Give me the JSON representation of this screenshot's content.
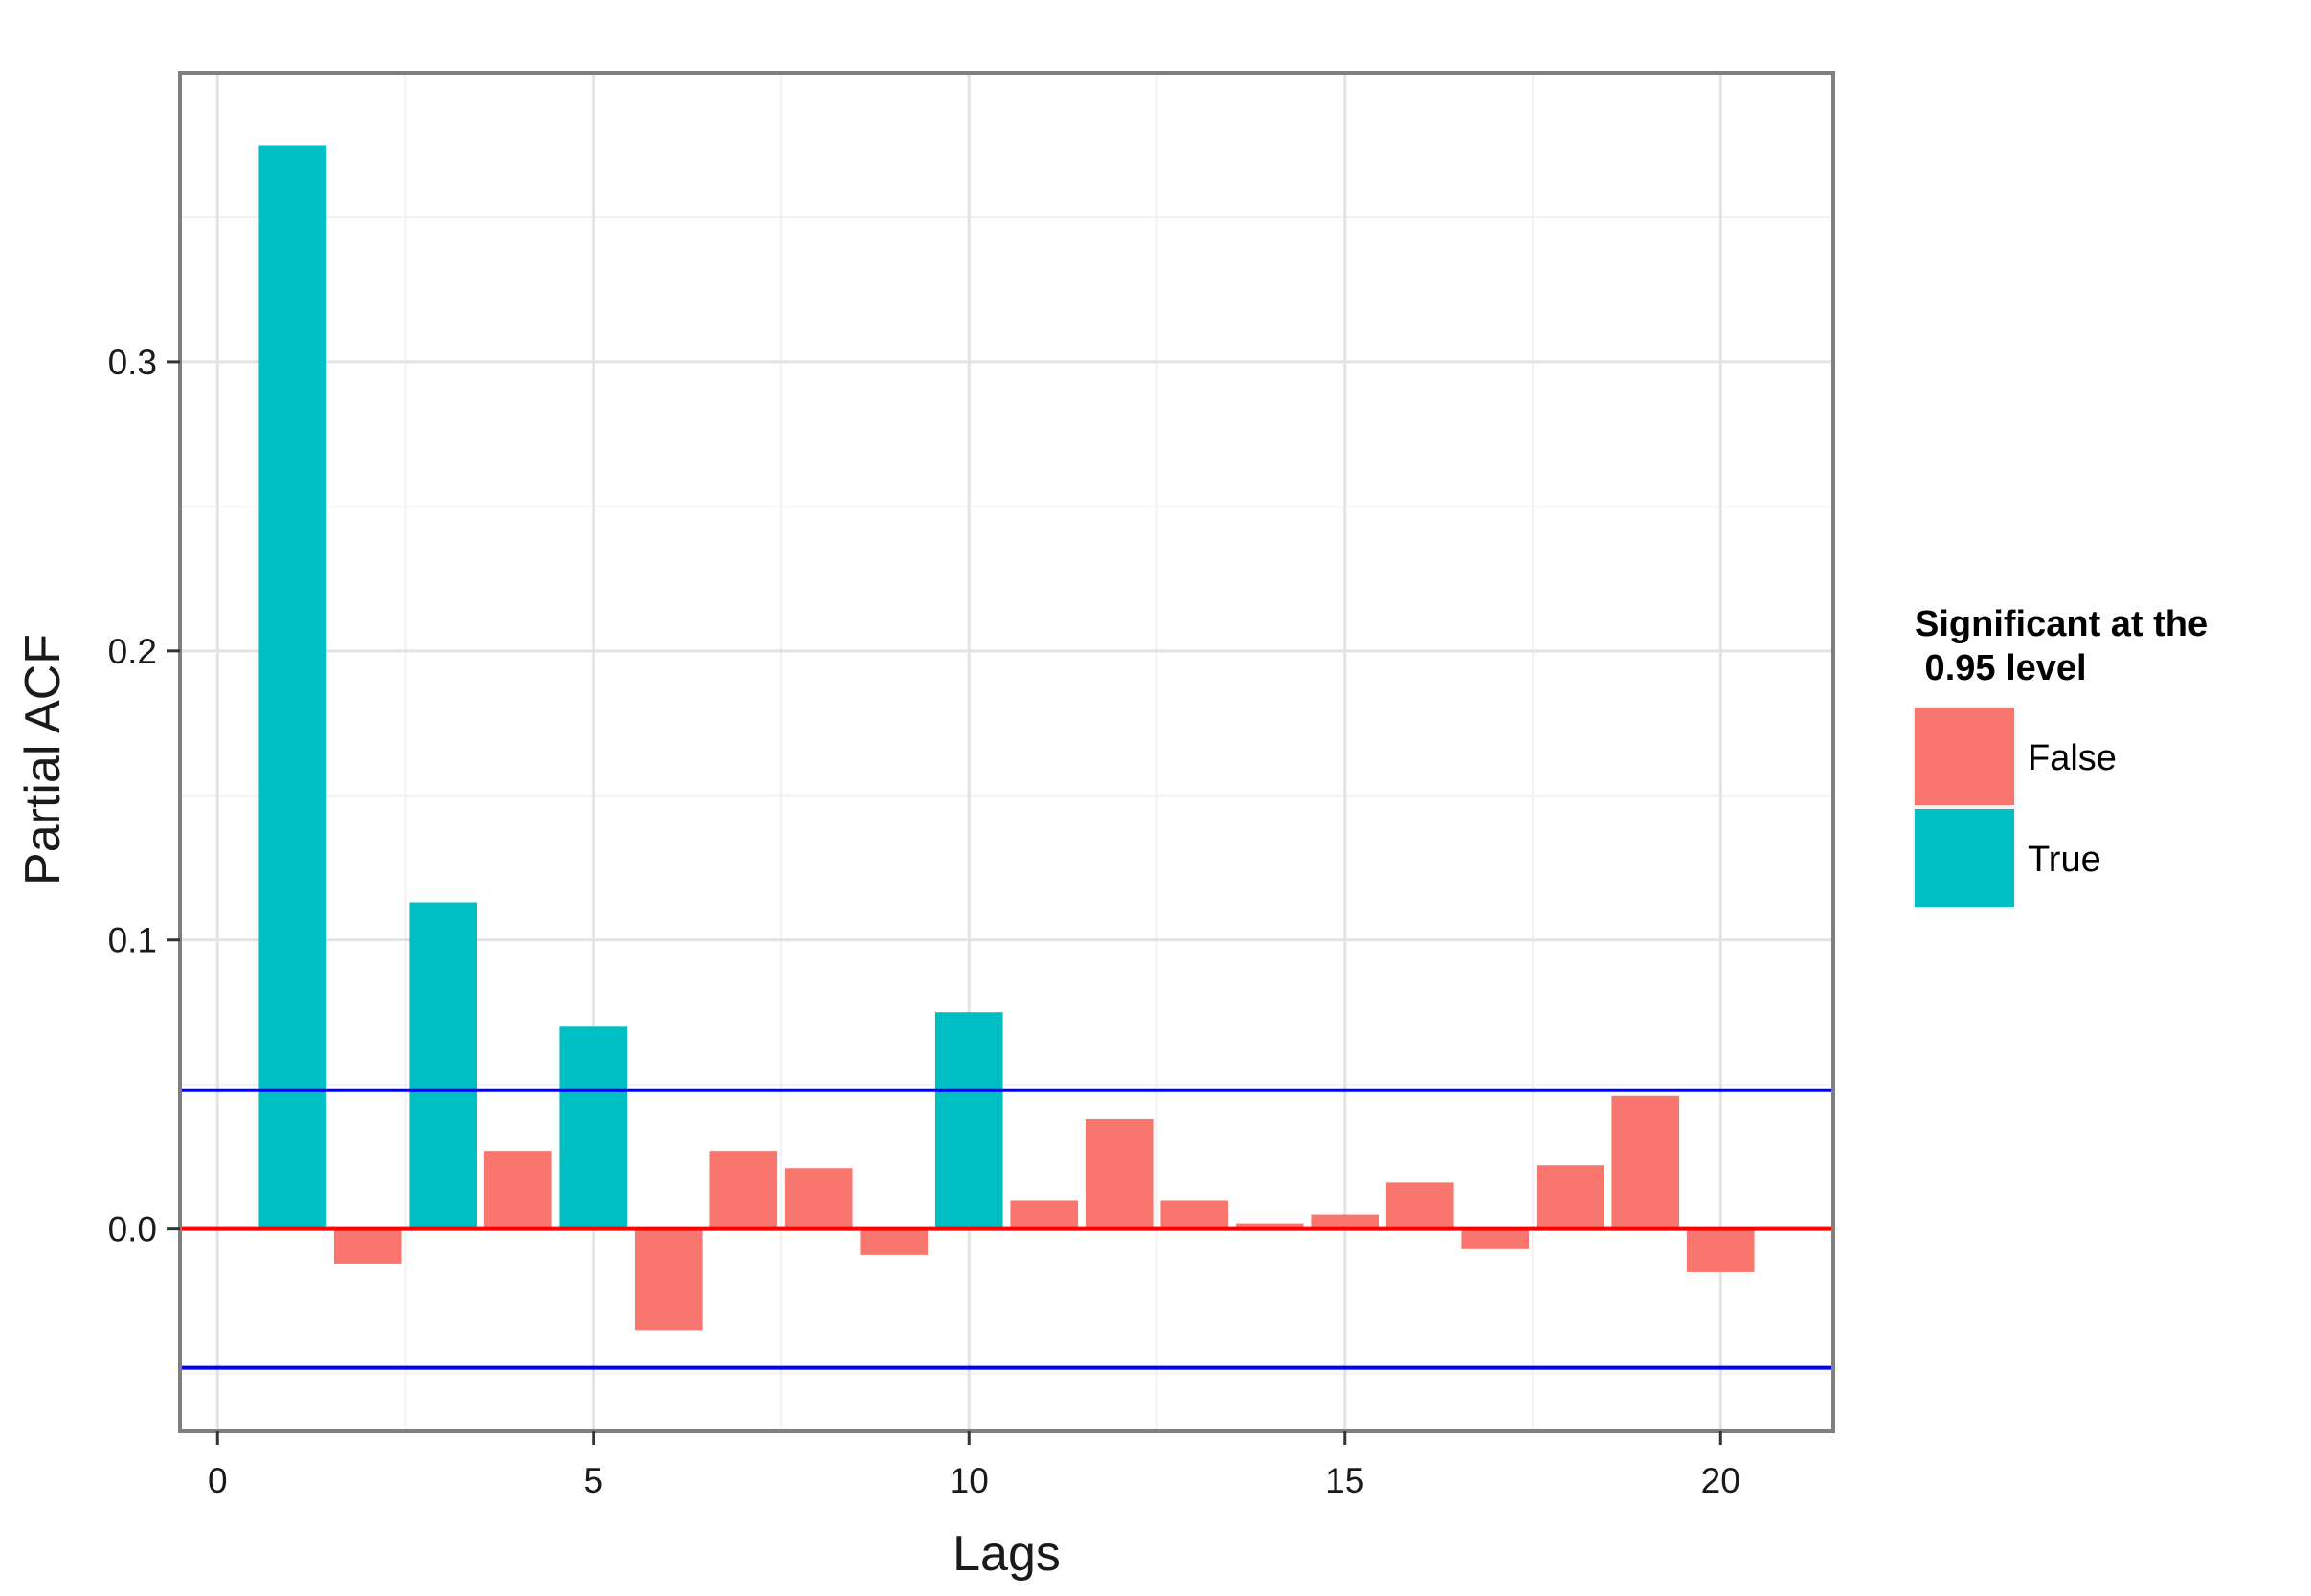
{
  "chart_data": {
    "type": "bar",
    "title": "",
    "xlabel": "Lags",
    "ylabel": "Partial ACF",
    "xlim": [
      -0.5,
      21.5
    ],
    "ylim": [
      -0.07,
      0.4
    ],
    "x_ticks": [
      0,
      5,
      10,
      15,
      20
    ],
    "x_tick_labels": [
      "0",
      "5",
      "10",
      "15",
      "20"
    ],
    "y_ticks": [
      0.0,
      0.1,
      0.2,
      0.3
    ],
    "y_tick_labels": [
      "0.0",
      "0.1",
      "0.2",
      "0.3"
    ],
    "grid": true,
    "lags": [
      1,
      2,
      3,
      4,
      5,
      6,
      7,
      8,
      9,
      10,
      11,
      12,
      13,
      14,
      15,
      16,
      17,
      18,
      19,
      20
    ],
    "values": [
      0.375,
      -0.012,
      0.113,
      0.027,
      0.07,
      -0.035,
      0.027,
      0.021,
      -0.009,
      0.075,
      0.01,
      0.038,
      0.01,
      0.002,
      0.005,
      0.016,
      -0.007,
      0.022,
      0.046,
      -0.015
    ],
    "significant": [
      "True",
      "False",
      "True",
      "False",
      "True",
      "False",
      "False",
      "False",
      "False",
      "True",
      "False",
      "False",
      "False",
      "False",
      "False",
      "False",
      "False",
      "False",
      "False",
      "False"
    ],
    "hlines": [
      {
        "y": 0.0,
        "color": "#ff0000"
      },
      {
        "y": 0.048,
        "color": "#0000ff"
      },
      {
        "y": -0.048,
        "color": "#0000ff"
      }
    ],
    "legend": {
      "title_line1": "Significant at the",
      "title_line2": " 0.95 level",
      "placement": "right",
      "entries": [
        {
          "label": "False",
          "color": "#f8766d"
        },
        {
          "label": "True",
          "color": "#00bfc4"
        }
      ]
    },
    "colors": {
      "False": "#f8766d",
      "True": "#00bfc4"
    }
  }
}
